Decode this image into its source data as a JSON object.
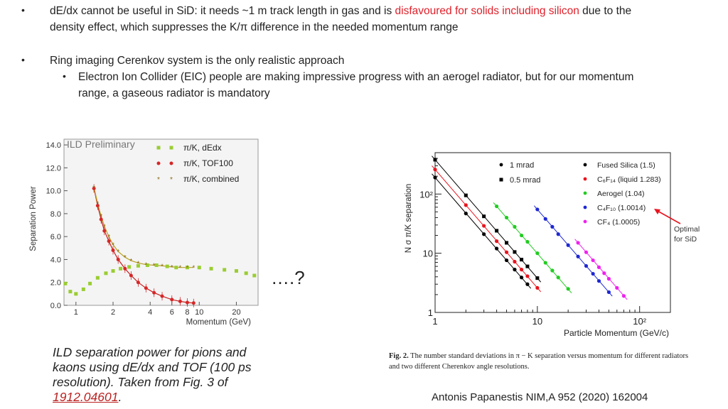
{
  "bullets": {
    "b1_a": "dE/dx cannot be useful in SiD:  it needs ~1 m track length in gas and is ",
    "b1_red": "disfavoured for solids including silicon",
    "b1_b": " due to the",
    "b1_line2": "density effect, which suppresses the K/π difference in the needed momentum range",
    "b2": "Ring imaging Cerenkov system is the only realistic approach",
    "b3_line1": "Electron Ion Collider (EIC) people are making impressive progress with an aerogel radiator, but for our momentum",
    "b3_line2": "range, a gaseous radiator is mandatory",
    "dot": "•"
  },
  "ellipsis": "….?",
  "left_caption": {
    "text": "ILD separation power for pions and kaons using dE/dx and TOF (100 ps resolution). Taken from Fig. 3 of ",
    "link": "1912.04601",
    "end": "."
  },
  "right_caption": {
    "fig": "Fig. 2.",
    "text": " The number standard deviations in π − K separation versus momentum for different radiators and two different Cherenkov angle resolutions."
  },
  "citation": "Antonis Papanestis NIM,A 952 (2020) 162004",
  "optimal_label": [
    "Optimal",
    "for SiD"
  ],
  "chart_data": [
    {
      "type": "scatter",
      "title": "ILD Preliminary",
      "xlabel": "Momentum (GeV)",
      "ylabel": "Separation Power",
      "xscale": "log",
      "xlim": [
        0.8,
        30
      ],
      "ylim": [
        0,
        14.5
      ],
      "xticks": [
        1,
        2,
        4,
        6,
        8,
        10,
        20
      ],
      "xtick_labels": [
        "1",
        "2",
        "4",
        "6",
        "8",
        "10",
        "20"
      ],
      "yticks": [
        0,
        2,
        4,
        6,
        8,
        10,
        12,
        14
      ],
      "ytick_labels": [
        "0.0",
        "2.0",
        "4.0",
        "6.0",
        "8.0",
        "10.0",
        "12.0",
        "14.0"
      ],
      "legend": [
        "π/K, dEdx",
        "π/K, TOF100",
        "π/K, combined"
      ],
      "series": [
        {
          "name": "π/K, dEdx",
          "color": "#9acd32",
          "x": [
            0.82,
            0.9,
            1.0,
            1.15,
            1.3,
            1.5,
            1.75,
            2.0,
            2.3,
            2.7,
            3.2,
            3.8,
            4.5,
            5.5,
            6.5,
            8.0,
            10.0,
            12.5,
            16.0,
            20.0,
            24.0,
            28.0
          ],
          "y": [
            1.9,
            1.2,
            1.0,
            1.4,
            1.9,
            2.4,
            2.8,
            3.0,
            3.2,
            3.35,
            3.45,
            3.5,
            3.5,
            3.4,
            3.3,
            3.3,
            3.3,
            3.2,
            3.1,
            3.0,
            2.8,
            2.6
          ]
        },
        {
          "name": "π/K, TOF100",
          "color": "#d62728",
          "x": [
            1.4,
            1.5,
            1.6,
            1.7,
            1.85,
            2.0,
            2.2,
            2.5,
            2.8,
            3.2,
            3.7,
            4.3,
            5.0,
            6.0,
            7.0,
            8.0,
            9.0
          ],
          "y": [
            10.2,
            8.7,
            7.5,
            6.5,
            5.6,
            4.8,
            4.0,
            3.2,
            2.6,
            2.0,
            1.5,
            1.1,
            0.8,
            0.5,
            0.35,
            0.25,
            0.2
          ]
        },
        {
          "name": "π/K, combined",
          "color": "#8b6914",
          "x": [
            1.4,
            1.5,
            1.6,
            1.7,
            1.85,
            2.0,
            2.2,
            2.5,
            2.8,
            3.2,
            3.7,
            4.3,
            5.0,
            6.0,
            7.0,
            8.0,
            9.0
          ],
          "y": [
            10.3,
            8.9,
            7.8,
            6.9,
            6.0,
            5.3,
            4.7,
            4.2,
            3.9,
            3.7,
            3.55,
            3.5,
            3.45,
            3.35,
            3.3,
            3.3,
            3.3
          ]
        }
      ]
    },
    {
      "type": "line",
      "xlabel": "Particle Momentum (GeV/c)",
      "ylabel": "N σ   π/K  separation",
      "xscale": "log",
      "yscale": "log",
      "xlim": [
        1,
        200
      ],
      "ylim": [
        1,
        500
      ],
      "xticks": [
        1,
        10,
        100
      ],
      "xtick_labels": [
        "1",
        "10",
        "10²"
      ],
      "yticks": [
        1,
        10,
        100
      ],
      "ytick_labels": [
        "1",
        "10",
        "10²"
      ],
      "legend_resolution": [
        "1 mrad",
        "0.5 mrad"
      ],
      "legend_radiators": [
        {
          "label": "Fused Silica (1.5)",
          "color": "#000000"
        },
        {
          "label": "C₆F₁₄ (liquid 1.283)",
          "color": "#e8141e"
        },
        {
          "label": "Aerogel (1.04)",
          "color": "#22cc22"
        },
        {
          "label": "C₄F₁₀ (1.0014)",
          "color": "#1e28d2"
        },
        {
          "label": "CF₄ (1.0005)",
          "color": "#ee22ee"
        }
      ],
      "series": [
        {
          "name": "Fused Silica 1 mrad",
          "color": "#000000",
          "marker": "circle",
          "x": [
            1,
            2,
            3,
            4,
            5,
            6,
            7,
            8
          ],
          "y": [
            190,
            47,
            21,
            12,
            7.6,
            5.3,
            3.9,
            3.0
          ]
        },
        {
          "name": "Fused Silica 0.5 mrad",
          "color": "#000000",
          "marker": "square",
          "x": [
            1,
            2,
            3,
            4,
            5,
            6,
            7,
            8,
            10
          ],
          "y": [
            380,
            95,
            42,
            24,
            15,
            10.5,
            7.8,
            6.0,
            3.8
          ]
        },
        {
          "name": "C6F14 1 mrad",
          "color": "#e8141e",
          "marker": "circle",
          "x": [
            1,
            2,
            3,
            4,
            5,
            6,
            7,
            8,
            10
          ],
          "y": [
            260,
            65,
            29,
            16,
            10.4,
            7.2,
            5.3,
            4.1,
            2.6
          ]
        },
        {
          "name": "Aerogel 1 mrad",
          "color": "#22cc22",
          "marker": "circle",
          "x": [
            4,
            5,
            6,
            7,
            8,
            10,
            12,
            14,
            16,
            20
          ],
          "y": [
            62,
            40,
            28,
            20,
            15.6,
            10,
            6.9,
            5.1,
            3.9,
            2.5
          ]
        },
        {
          "name": "C4F10 1 mrad",
          "color": "#1e28d2",
          "marker": "circle",
          "x": [
            10,
            12,
            14,
            16,
            20,
            25,
            30,
            35,
            40,
            50
          ],
          "y": [
            55,
            38,
            28,
            21,
            13.7,
            8.8,
            6.1,
            4.5,
            3.4,
            2.2
          ]
        },
        {
          "name": "CF4 1 mrad",
          "color": "#ee22ee",
          "marker": "circle",
          "x": [
            25,
            30,
            35,
            40,
            45,
            50,
            60,
            70
          ],
          "y": [
            15,
            10.4,
            7.6,
            5.8,
            4.6,
            3.7,
            2.6,
            1.9
          ]
        }
      ]
    }
  ]
}
